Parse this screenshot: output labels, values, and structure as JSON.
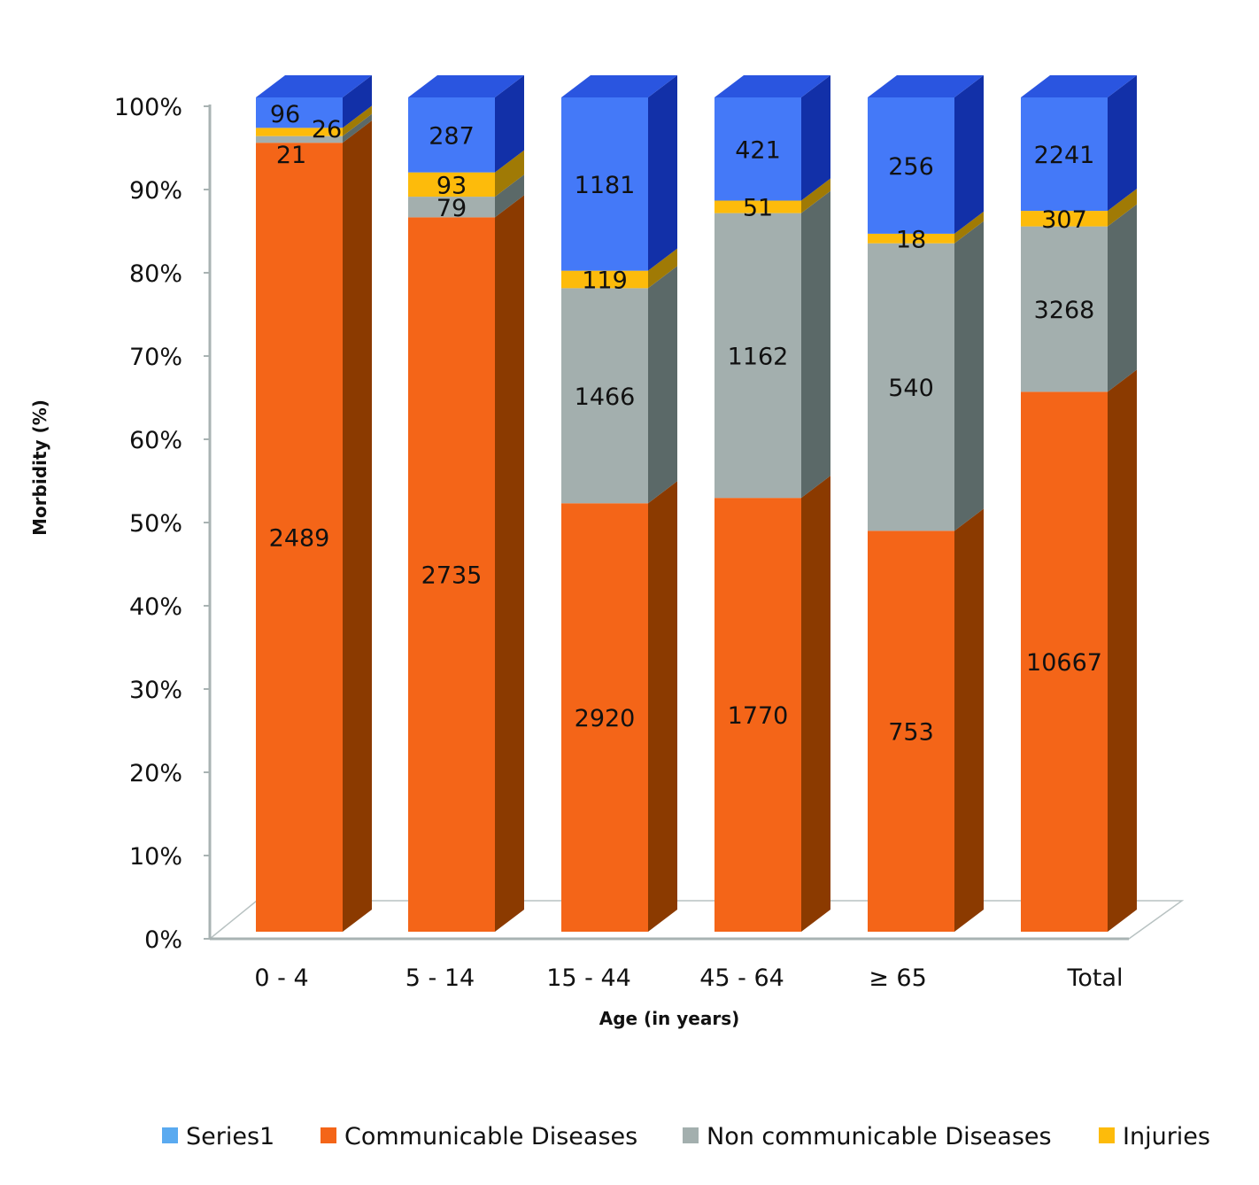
{
  "chart_data": {
    "type": "bar",
    "stacked": "percent",
    "three_d": true,
    "xlabel": "Age (in years)",
    "ylabel": "Morbidity (%)",
    "ylim": [
      0,
      100
    ],
    "yticks": [
      "0%",
      "10%",
      "20%",
      "30%",
      "40%",
      "50%",
      "60%",
      "70%",
      "80%",
      "90%",
      "100%"
    ],
    "categories": [
      "0 - 4",
      "5 - 14",
      "15 - 44",
      "45 - 64",
      "≥ 65",
      "Total"
    ],
    "series": [
      {
        "name": "Communicable Diseases",
        "color": "#f46518",
        "side": "#8b3a00",
        "values": [
          2489,
          2735,
          2920,
          1770,
          753,
          10667
        ]
      },
      {
        "name": "Non communicable Diseases",
        "color": "#a3afae",
        "side": "#5b6968",
        "values": [
          21,
          79,
          1466,
          1162,
          540,
          3268
        ]
      },
      {
        "name": "Injuries",
        "color": "#fdbb0b",
        "side": "#a07a05",
        "values": [
          26,
          93,
          119,
          51,
          18,
          307
        ]
      },
      {
        "name": "Series1",
        "color": "#4479f8",
        "side": "#1230a8",
        "top": "#2a55e0",
        "legend_color": "#5aaaf0",
        "values": [
          96,
          287,
          1181,
          421,
          256,
          2241
        ]
      }
    ],
    "legend": {
      "placement": "bottom",
      "order": [
        "Series1",
        "Communicable Diseases",
        "Non communicable Diseases",
        "Injuries"
      ]
    },
    "grid": false
  }
}
